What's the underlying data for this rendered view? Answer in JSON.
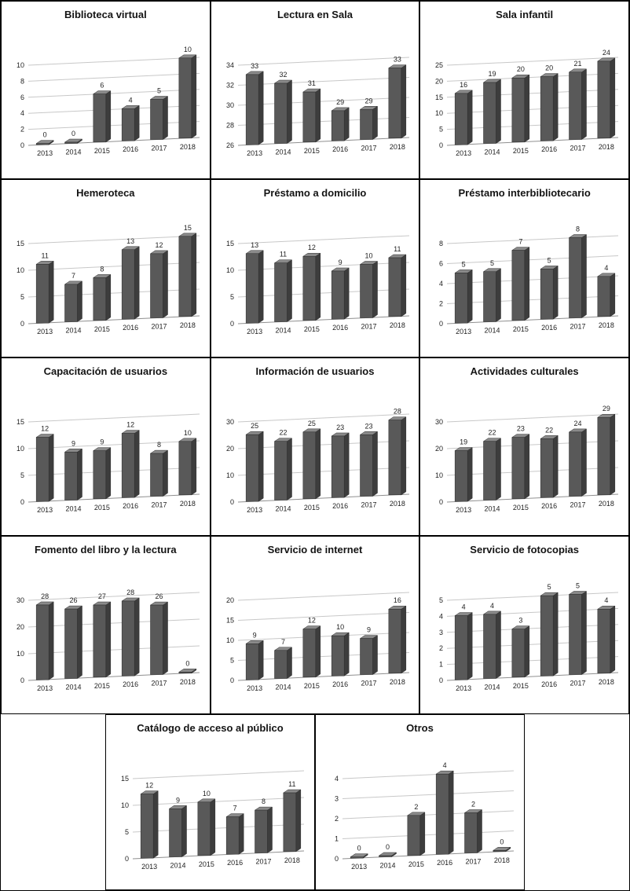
{
  "style": {
    "bar_front": "#595959",
    "bar_top": "#8a8a8a",
    "bar_side": "#3d3d3d",
    "bar_outline": "#2b2b2b",
    "gridline": "#c8c8c8",
    "axis_line": "#8f8f8f",
    "text": "#1f1f1f"
  },
  "chart_data": [
    {
      "type": "bar",
      "title": "Biblioteca virtual",
      "categories": [
        "2013",
        "2014",
        "2015",
        "2016",
        "2017",
        "2018"
      ],
      "values": [
        0,
        0,
        6,
        4,
        5,
        10
      ],
      "ylim": [
        0,
        10
      ],
      "yticks": [
        0,
        2,
        4,
        6,
        8,
        10
      ],
      "xlabel": "",
      "ylabel": "",
      "legend": "none",
      "grid": true,
      "data_labels": true
    },
    {
      "type": "bar",
      "title": "Lectura en Sala",
      "categories": [
        "2013",
        "2014",
        "2015",
        "2016",
        "2017",
        "2018"
      ],
      "values": [
        33,
        32,
        31,
        29,
        29,
        33
      ],
      "ylim": [
        26,
        34
      ],
      "yticks": [
        26,
        28,
        30,
        32,
        34
      ],
      "xlabel": "",
      "ylabel": "",
      "legend": "none",
      "grid": true,
      "data_labels": true
    },
    {
      "type": "bar",
      "title": "Sala infantil",
      "categories": [
        "2013",
        "2014",
        "2015",
        "2016",
        "2017",
        "2018"
      ],
      "values": [
        16,
        19,
        20,
        20,
        21,
        24
      ],
      "ylim": [
        0,
        25
      ],
      "yticks": [
        0,
        5,
        10,
        15,
        20,
        25
      ],
      "xlabel": "",
      "ylabel": "",
      "legend": "none",
      "grid": true,
      "data_labels": true
    },
    {
      "type": "bar",
      "title": "Hemeroteca",
      "categories": [
        "2013",
        "2014",
        "2015",
        "2016",
        "2017",
        "2018"
      ],
      "values": [
        11,
        7,
        8,
        13,
        12,
        15
      ],
      "ylim": [
        0,
        15
      ],
      "yticks": [
        0,
        5,
        10,
        15
      ],
      "xlabel": "",
      "ylabel": "",
      "legend": "none",
      "grid": true,
      "data_labels": true
    },
    {
      "type": "bar",
      "title": "Préstamo a domicilio",
      "categories": [
        "2013",
        "2014",
        "2015",
        "2016",
        "2017",
        "2018"
      ],
      "values": [
        13,
        11,
        12,
        9,
        10,
        11
      ],
      "ylim": [
        0,
        15
      ],
      "yticks": [
        0,
        5,
        10,
        15
      ],
      "xlabel": "",
      "ylabel": "",
      "legend": "none",
      "grid": true,
      "data_labels": true
    },
    {
      "type": "bar",
      "title": "Préstamo interbibliotecario",
      "categories": [
        "2013",
        "2014",
        "2015",
        "2016",
        "2017",
        "2018"
      ],
      "values": [
        5,
        5,
        7,
        5,
        8,
        4
      ],
      "ylim": [
        0,
        8
      ],
      "yticks": [
        0,
        2,
        4,
        6,
        8
      ],
      "xlabel": "",
      "ylabel": "",
      "legend": "none",
      "grid": true,
      "data_labels": true
    },
    {
      "type": "bar",
      "title": "Capacitación de usuarios",
      "categories": [
        "2013",
        "2014",
        "2015",
        "2016",
        "2017",
        "2018"
      ],
      "values": [
        12,
        9,
        9,
        12,
        8,
        10
      ],
      "ylim": [
        0,
        15
      ],
      "yticks": [
        0,
        5,
        10,
        15
      ],
      "xlabel": "",
      "ylabel": "",
      "legend": "none",
      "grid": true,
      "data_labels": true
    },
    {
      "type": "bar",
      "title": "Información de usuarios",
      "categories": [
        "2013",
        "2014",
        "2015",
        "2016",
        "2017",
        "2018"
      ],
      "values": [
        25,
        22,
        25,
        23,
        23,
        28
      ],
      "ylim": [
        0,
        30
      ],
      "yticks": [
        0,
        10,
        20,
        30
      ],
      "xlabel": "",
      "ylabel": "",
      "legend": "none",
      "grid": true,
      "data_labels": true
    },
    {
      "type": "bar",
      "title": "Actividades culturales",
      "categories": [
        "2013",
        "2014",
        "2015",
        "2016",
        "2017",
        "2018"
      ],
      "values": [
        19,
        22,
        23,
        22,
        24,
        29
      ],
      "ylim": [
        0,
        30
      ],
      "yticks": [
        0,
        10,
        20,
        30
      ],
      "xlabel": "",
      "ylabel": "",
      "legend": "none",
      "grid": true,
      "data_labels": true
    },
    {
      "type": "bar",
      "title": "Fomento del libro y la lectura",
      "categories": [
        "2013",
        "2014",
        "2015",
        "2016",
        "2017",
        "2018"
      ],
      "values": [
        28,
        26,
        27,
        28,
        26,
        0
      ],
      "ylim": [
        0,
        30
      ],
      "yticks": [
        0,
        10,
        20,
        30
      ],
      "xlabel": "",
      "ylabel": "",
      "legend": "none",
      "grid": true,
      "data_labels": true
    },
    {
      "type": "bar",
      "title": "Servicio de internet",
      "categories": [
        "2013",
        "2014",
        "2015",
        "2016",
        "2017",
        "2018"
      ],
      "values": [
        9,
        7,
        12,
        10,
        9,
        16
      ],
      "ylim": [
        0,
        20
      ],
      "yticks": [
        0,
        5,
        10,
        15,
        20
      ],
      "xlabel": "",
      "ylabel": "",
      "legend": "none",
      "grid": true,
      "data_labels": true
    },
    {
      "type": "bar",
      "title": "Servicio de fotocopias",
      "categories": [
        "2013",
        "2014",
        "2015",
        "2016",
        "2017",
        "2018"
      ],
      "values": [
        4,
        4,
        3,
        5,
        5,
        4
      ],
      "ylim": [
        0,
        5
      ],
      "yticks": [
        0,
        1,
        2,
        3,
        4,
        5
      ],
      "xlabel": "",
      "ylabel": "",
      "legend": "none",
      "grid": true,
      "data_labels": true
    },
    {
      "type": "bar",
      "title": "Catálogo de acceso al público",
      "categories": [
        "2013",
        "2014",
        "2015",
        "2016",
        "2017",
        "2018"
      ],
      "values": [
        12,
        9,
        10,
        7,
        8,
        11
      ],
      "ylim": [
        0,
        15
      ],
      "yticks": [
        0,
        5,
        10,
        15
      ],
      "xlabel": "",
      "ylabel": "",
      "legend": "none",
      "grid": true,
      "data_labels": true
    },
    {
      "type": "bar",
      "title": "Otros",
      "categories": [
        "2013",
        "2014",
        "2015",
        "2016",
        "2017",
        "2018"
      ],
      "values": [
        0,
        0,
        2,
        4,
        2,
        0
      ],
      "ylim": [
        0,
        4
      ],
      "yticks": [
        0,
        1,
        2,
        3,
        4
      ],
      "xlabel": "",
      "ylabel": "",
      "legend": "none",
      "grid": true,
      "data_labels": true
    }
  ]
}
